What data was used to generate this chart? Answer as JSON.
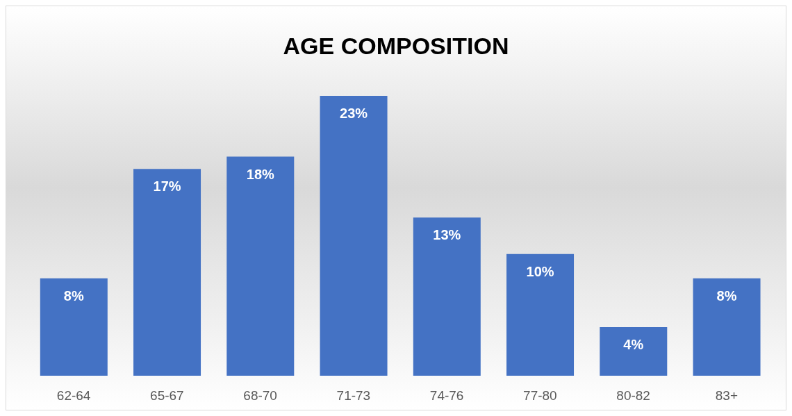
{
  "chart_data": {
    "type": "bar",
    "title": "AGE COMPOSITION",
    "categories": [
      "62-64",
      "65-67",
      "68-70",
      "71-73",
      "74-76",
      "77-80",
      "80-82",
      "83+"
    ],
    "values": [
      8,
      17,
      18,
      23,
      13,
      10,
      4,
      8
    ],
    "value_labels": [
      "8%",
      "17%",
      "18%",
      "23%",
      "13%",
      "10%",
      "4%",
      "8%"
    ],
    "color": "#4472c4"
  }
}
